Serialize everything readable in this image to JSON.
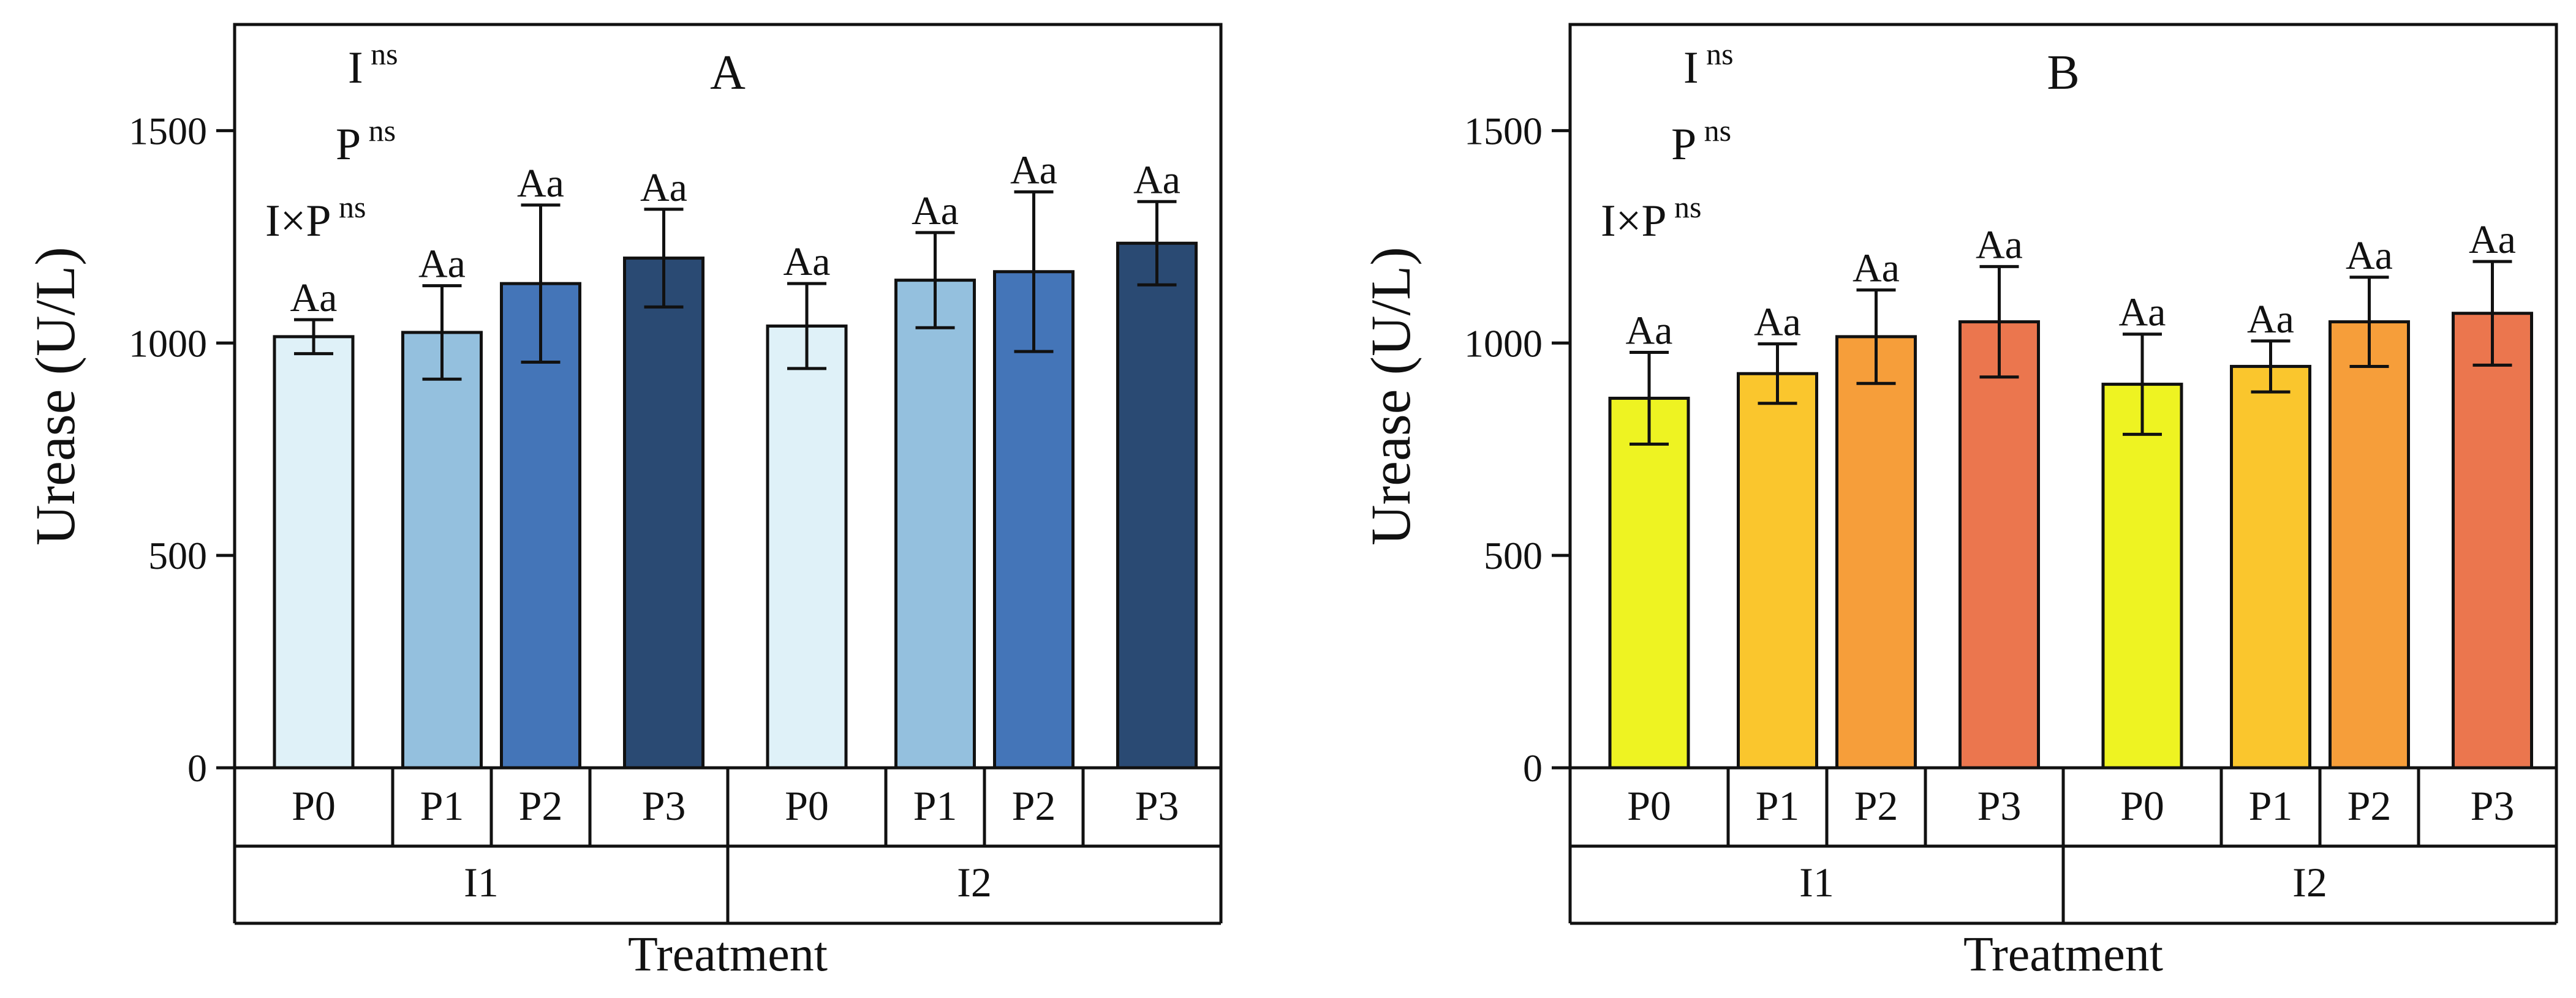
{
  "chart_data": [
    {
      "type": "bar",
      "panel_label": "A",
      "stats": [
        {
          "label": "I",
          "sup": "ns"
        },
        {
          "label": "P",
          "sup": "ns"
        },
        {
          "label": "I×P",
          "sup": "ns"
        }
      ],
      "ylabel": "Urease (U/L)",
      "xlabel": "Treatment",
      "ylim": [
        0,
        1750
      ],
      "yticks": [
        0,
        500,
        1000,
        1500
      ],
      "groups": [
        {
          "name": "I1",
          "categories": [
            "P0",
            "P1",
            "P2",
            "P3"
          ],
          "values": [
            1015,
            1025,
            1140,
            1200
          ],
          "errors": [
            40,
            110,
            185,
            115
          ],
          "letters": [
            "Aa",
            "Aa",
            "Aa",
            "Aa"
          ]
        },
        {
          "name": "I2",
          "categories": [
            "P0",
            "P1",
            "P2",
            "P3"
          ],
          "values": [
            1040,
            1148,
            1168,
            1235
          ],
          "errors": [
            100,
            112,
            188,
            98
          ],
          "letters": [
            "Aa",
            "Aa",
            "Aa",
            "Aa"
          ]
        }
      ],
      "colors": [
        "#dff1f8",
        "#94c0de",
        "#4475b8",
        "#2a4a73"
      ]
    },
    {
      "type": "bar",
      "panel_label": "B",
      "stats": [
        {
          "label": "I",
          "sup": "ns"
        },
        {
          "label": "P",
          "sup": "ns"
        },
        {
          "label": "I×P",
          "sup": "ns"
        }
      ],
      "ylabel": "Urease (U/L)",
      "xlabel": "Treatment",
      "ylim": [
        0,
        1750
      ],
      "yticks": [
        0,
        500,
        1000,
        1500
      ],
      "groups": [
        {
          "name": "I1",
          "categories": [
            "P0",
            "P1",
            "P2",
            "P3"
          ],
          "values": [
            870,
            928,
            1015,
            1050
          ],
          "errors": [
            108,
            70,
            110,
            130
          ],
          "letters": [
            "Aa",
            "Aa",
            "Aa",
            "Aa"
          ]
        },
        {
          "name": "I2",
          "categories": [
            "P0",
            "P1",
            "P2",
            "P3"
          ],
          "values": [
            903,
            945,
            1050,
            1070
          ],
          "errors": [
            118,
            60,
            105,
            122
          ],
          "letters": [
            "Aa",
            "Aa",
            "Aa",
            "Aa"
          ]
        }
      ],
      "colors": [
        "#eef322",
        "#fac62d",
        "#f69e3a",
        "#eb764e"
      ]
    }
  ]
}
